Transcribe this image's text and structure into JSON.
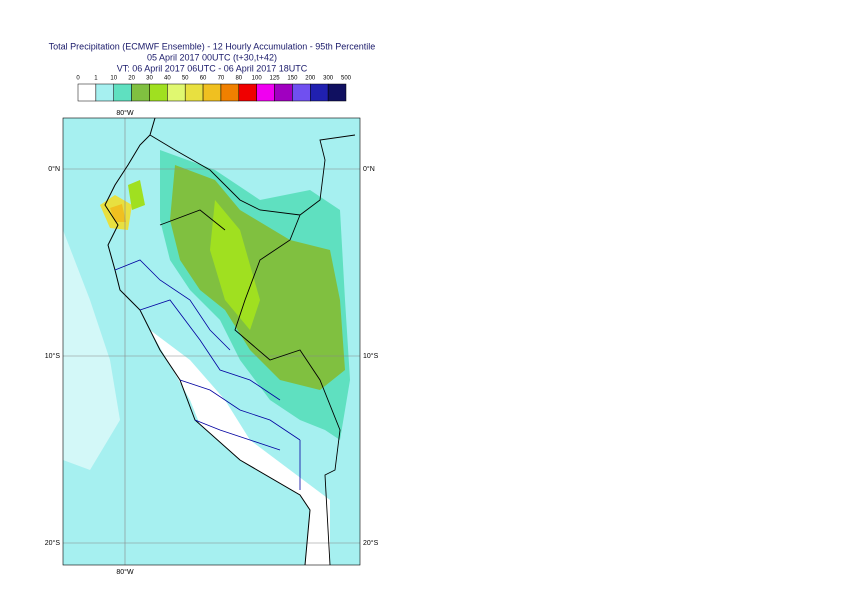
{
  "header": {
    "title": [
      "Total Precipitation (ECMWF Ensemble) - 12 Hourly Accumulation - 95th Percentile",
      "05 April 2017 00UTC (t+30,t+42)",
      "VT: 06 April 2017 06UTC - 06 April 2017 18UTC"
    ]
  },
  "colorbar": {
    "labels": [
      "0",
      "1",
      "10",
      "20",
      "30",
      "40",
      "50",
      "60",
      "70",
      "80",
      "100",
      "125",
      "150",
      "200",
      "300",
      "500"
    ],
    "colors": [
      "#ffffff",
      "#a6f0f0",
      "#5fe0c0",
      "#80c040",
      "#a0e020",
      "#e0f870",
      "#e8e040",
      "#f0c020",
      "#f08000",
      "#f00000",
      "#f000f0",
      "#a000c0",
      "#7050f0",
      "#2020b0",
      "#101060"
    ]
  },
  "map": {
    "lon_labels": [
      "80°W"
    ],
    "lat_labels": [
      "0°N",
      "10°S",
      "20°S"
    ]
  }
}
